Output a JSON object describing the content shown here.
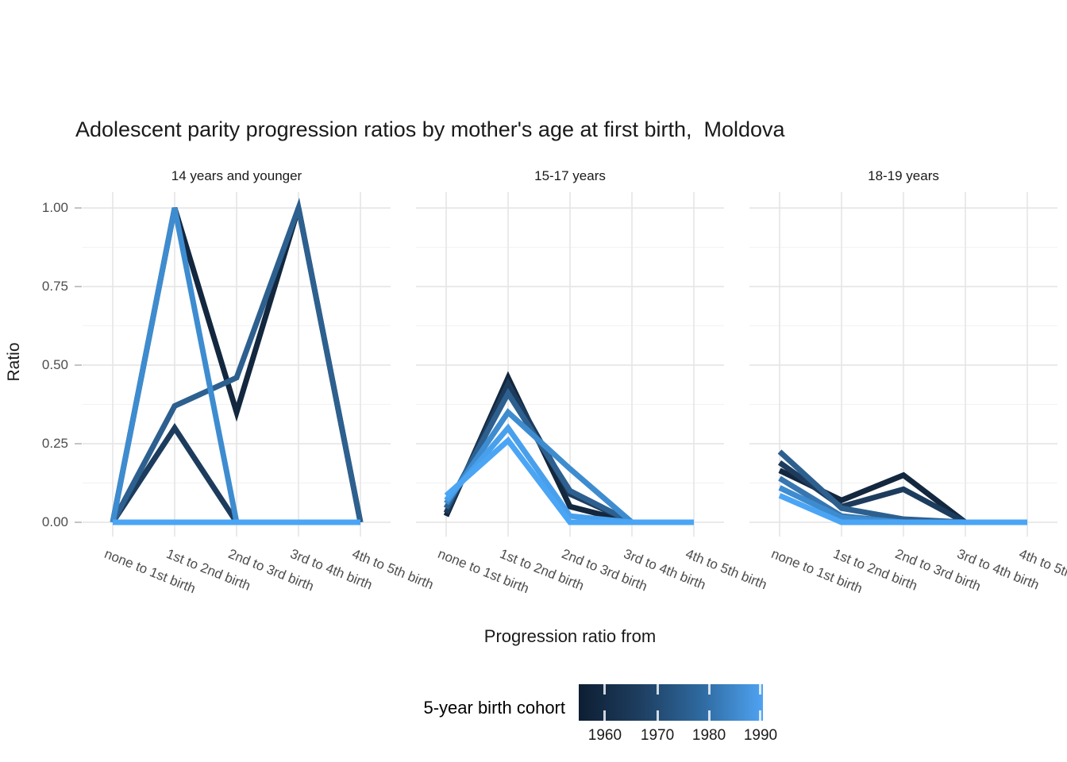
{
  "chart_data": {
    "type": "line",
    "title": "Adolescent parity progression ratios by mother's age at first birth,  Moldova",
    "xlabel": "Progression ratio from",
    "ylabel": "Ratio",
    "categories": [
      "none to 1st birth",
      "1st to 2nd birth",
      "2nd to 3rd birth",
      "3rd to 4th birth",
      "4th to 5th birth"
    ],
    "y_ticks": [
      {
        "value": 1.0,
        "label": "1.00"
      },
      {
        "value": 0.75,
        "label": "0.75"
      },
      {
        "value": 0.5,
        "label": "0.50"
      },
      {
        "value": 0.25,
        "label": "0.25"
      },
      {
        "value": 0.0,
        "label": "0.00"
      }
    ],
    "ylim": [
      0,
      1
    ],
    "grid": true,
    "facets": [
      {
        "label": "14 years and younger",
        "series": [
          {
            "cohort": "1960",
            "color": "#13273E",
            "values": [
              0,
              1.0,
              0.35,
              1.0,
              0
            ]
          },
          {
            "cohort": "1965",
            "color": "#1D3C5D",
            "values": [
              0,
              0.3,
              0,
              0,
              0
            ]
          },
          {
            "cohort": "1970",
            "color": "#2D608F",
            "values": [
              0,
              0.37,
              0.46,
              1.0,
              0
            ]
          },
          {
            "cohort": "1980",
            "color": "#3E8CD0",
            "values": [
              0,
              1.0,
              0,
              0,
              0
            ]
          },
          {
            "cohort": "1990",
            "color": "#4BA5F5",
            "values": [
              0,
              0,
              0,
              0,
              0
            ]
          }
        ]
      },
      {
        "label": "15-17 years",
        "series": [
          {
            "cohort": "1960",
            "color": "#13273E",
            "values": [
              0.02,
              0.46,
              0.05,
              0,
              0
            ]
          },
          {
            "cohort": "1965",
            "color": "#1D3C5D",
            "values": [
              0.03,
              0.44,
              0.09,
              0,
              0
            ]
          },
          {
            "cohort": "1970",
            "color": "#2D608F",
            "values": [
              0.045,
              0.41,
              0.1,
              0,
              0
            ]
          },
          {
            "cohort": "1980",
            "color": "#3E8CD0",
            "values": [
              0.06,
              0.35,
              0.17,
              0,
              0
            ]
          },
          {
            "cohort": "1985",
            "color": "#48A0EC",
            "values": [
              0.07,
              0.3,
              0.02,
              0,
              0
            ]
          },
          {
            "cohort": "1990",
            "color": "#4BA5F5",
            "values": [
              0.085,
              0.26,
              0,
              0,
              0
            ]
          }
        ]
      },
      {
        "label": "18-19 years",
        "series": [
          {
            "cohort": "1960",
            "color": "#13273E",
            "values": [
              0.165,
              0.07,
              0.15,
              0,
              0
            ]
          },
          {
            "cohort": "1965",
            "color": "#1D3C5D",
            "values": [
              0.19,
              0.05,
              0.105,
              0,
              0
            ]
          },
          {
            "cohort": "1970",
            "color": "#2D608F",
            "values": [
              0.225,
              0.045,
              0.01,
              0,
              0
            ]
          },
          {
            "cohort": "1975",
            "color": "#3776B1",
            "values": [
              0.14,
              0.02,
              0,
              0,
              0
            ]
          },
          {
            "cohort": "1980",
            "color": "#3E8CD0",
            "values": [
              0.11,
              0.015,
              0,
              0,
              0
            ]
          },
          {
            "cohort": "1990",
            "color": "#4BA5F5",
            "values": [
              0.085,
              0,
              0,
              0,
              0
            ]
          }
        ]
      }
    ],
    "legend": {
      "title": "5-year birth cohort",
      "tick_labels": [
        "1960",
        "1970",
        "1980",
        "1990"
      ],
      "gradient_stops": [
        "#0D1E32",
        "#1E3E60",
        "#2F6AA0",
        "#4FA3F2"
      ],
      "position": "bottom"
    }
  },
  "colors": {
    "grid_major": "#E4E4E4",
    "grid_minor": "#F2F2F2",
    "axis_text": "#4D4D4D",
    "text": "#1A1A1A",
    "tick_mark": "#C4C4C4",
    "legend_tick": "#FFFFFFCC"
  }
}
